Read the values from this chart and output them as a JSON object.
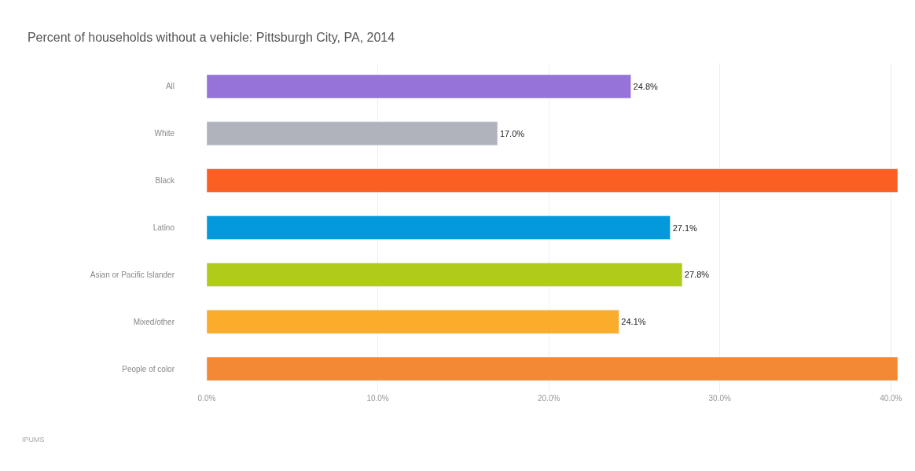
{
  "chart_data": {
    "type": "bar",
    "orientation": "horizontal",
    "title": "Percent of households without a vehicle: Pittsburgh City, PA, 2014",
    "categories": [
      "All",
      "White",
      "Black",
      "Latino",
      "Asian or Pacific Islander",
      "Mixed/other",
      "People of color"
    ],
    "values": [
      24.8,
      17.0,
      40.4,
      27.1,
      27.8,
      24.1,
      40.4
    ],
    "colors": [
      "#9673d8",
      "#b1b3bc",
      "#fb5f21",
      "#0399db",
      "#b1cb1a",
      "#f9ad2a",
      "#f38935"
    ],
    "value_labels": [
      "24.8%",
      "17.0%",
      null,
      "27.1%",
      "27.8%",
      "24.1%",
      null
    ],
    "xlim": [
      0,
      40.4
    ],
    "xticks": [
      {
        "value": 0,
        "label": "0.0%"
      },
      {
        "value": 10,
        "label": "10.0%"
      },
      {
        "value": 20,
        "label": "20.0%"
      },
      {
        "value": 30,
        "label": "30.0%"
      },
      {
        "value": 40,
        "label": "40.0%"
      }
    ],
    "grid": "x",
    "annotations": [
      "IPUMS"
    ]
  }
}
